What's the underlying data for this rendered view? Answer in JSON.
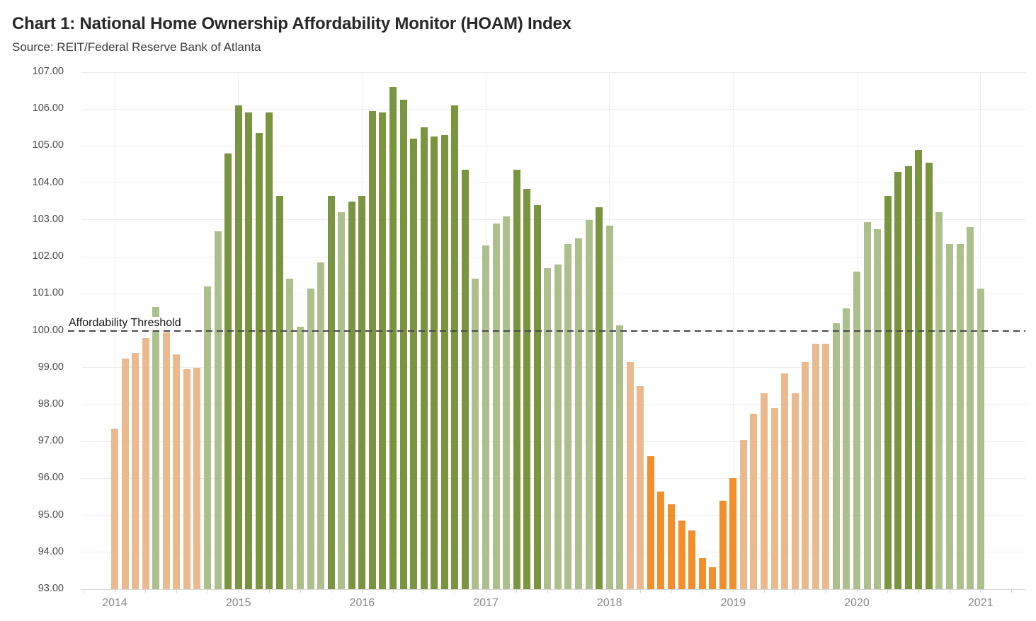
{
  "header": {
    "title": "Chart 1: National Home Ownership Affordability Monitor (HOAM) Index",
    "source": "Source: REIT/Federal Reserve Bank of Atlanta"
  },
  "chart_data": {
    "type": "bar",
    "title": "Chart 1: National Home Ownership Affordability Monitor (HOAM) Index",
    "subtitle": "Source: REIT/Federal Reserve Bank of Atlanta",
    "xlabel": "",
    "ylabel": "",
    "ylim": [
      93,
      107
    ],
    "grid": true,
    "ytick_values": [
      93,
      94,
      95,
      96,
      97,
      98,
      99,
      100,
      101,
      102,
      103,
      104,
      105,
      106,
      107
    ],
    "ytick_labels": [
      "93.00",
      "94.00",
      "95.00",
      "96.00",
      "97.00",
      "98.00",
      "99.00",
      "100.00",
      "101.00",
      "102.00",
      "103.00",
      "104.00",
      "105.00",
      "106.00",
      "107.00"
    ],
    "year_labels": [
      "2014",
      "2015",
      "2016",
      "2017",
      "2018",
      "2019",
      "2020",
      "2021"
    ],
    "threshold": {
      "value": 100,
      "label": "Affordability Threshold"
    },
    "palette": {
      "tan": "#EAB98E",
      "orange": "#F28E2B",
      "light_green": "#ADBF8C",
      "dark_green": "#7A9440"
    },
    "months": [
      "2014-01",
      "2014-02",
      "2014-03",
      "2014-04",
      "2014-05",
      "2014-06",
      "2014-07",
      "2014-08",
      "2014-09",
      "2014-10",
      "2014-11",
      "2014-12",
      "2015-01",
      "2015-02",
      "2015-03",
      "2015-04",
      "2015-05",
      "2015-06",
      "2015-07",
      "2015-08",
      "2015-09",
      "2015-10",
      "2015-11",
      "2015-12",
      "2016-01",
      "2016-02",
      "2016-03",
      "2016-04",
      "2016-05",
      "2016-06",
      "2016-07",
      "2016-08",
      "2016-09",
      "2016-10",
      "2016-11",
      "2016-12",
      "2017-01",
      "2017-02",
      "2017-03",
      "2017-04",
      "2017-05",
      "2017-06",
      "2017-07",
      "2017-08",
      "2017-09",
      "2017-10",
      "2017-11",
      "2017-12",
      "2018-01",
      "2018-02",
      "2018-03",
      "2018-04",
      "2018-05",
      "2018-06",
      "2018-07",
      "2018-08",
      "2018-09",
      "2018-10",
      "2018-11",
      "2018-12",
      "2019-01",
      "2019-02",
      "2019-03",
      "2019-04",
      "2019-05",
      "2019-06",
      "2019-07",
      "2019-08",
      "2019-09",
      "2019-10",
      "2019-11",
      "2019-12",
      "2020-01",
      "2020-02",
      "2020-03",
      "2020-04",
      "2020-05",
      "2020-06",
      "2020-07",
      "2020-08",
      "2020-09",
      "2020-10",
      "2020-11",
      "2020-12",
      "2021-01"
    ],
    "values": [
      97.35,
      99.25,
      99.4,
      99.8,
      100.65,
      99.95,
      99.35,
      98.95,
      99.0,
      101.2,
      102.7,
      104.8,
      106.1,
      105.9,
      105.35,
      105.9,
      103.65,
      101.4,
      100.1,
      101.15,
      101.85,
      103.65,
      103.2,
      103.5,
      103.65,
      105.95,
      105.9,
      106.6,
      106.25,
      105.2,
      105.5,
      105.25,
      105.3,
      106.1,
      104.35,
      101.4,
      102.3,
      102.9,
      103.1,
      104.35,
      103.85,
      103.4,
      101.7,
      101.8,
      102.35,
      102.5,
      103.0,
      103.35,
      102.85,
      100.15,
      99.15,
      98.5,
      96.6,
      95.65,
      95.3,
      94.85,
      94.6,
      93.85,
      93.6,
      95.4,
      96.0,
      97.05,
      97.75,
      98.3,
      97.9,
      98.85,
      98.3,
      99.15,
      99.65,
      99.65,
      100.2,
      100.6,
      101.6,
      102.95,
      102.75,
      103.65,
      104.3,
      104.45,
      104.9,
      104.55,
      103.2,
      102.35,
      102.35,
      102.8,
      101.15
    ],
    "categories": [
      "tan",
      "tan",
      "tan",
      "tan",
      "light_green",
      "tan",
      "tan",
      "tan",
      "tan",
      "light_green",
      "light_green",
      "dark_green",
      "dark_green",
      "dark_green",
      "dark_green",
      "dark_green",
      "dark_green",
      "light_green",
      "light_green",
      "light_green",
      "light_green",
      "dark_green",
      "light_green",
      "dark_green",
      "dark_green",
      "dark_green",
      "dark_green",
      "dark_green",
      "dark_green",
      "dark_green",
      "dark_green",
      "dark_green",
      "dark_green",
      "dark_green",
      "dark_green",
      "light_green",
      "light_green",
      "light_green",
      "light_green",
      "dark_green",
      "dark_green",
      "dark_green",
      "light_green",
      "light_green",
      "light_green",
      "light_green",
      "light_green",
      "dark_green",
      "light_green",
      "light_green",
      "tan",
      "tan",
      "orange",
      "orange",
      "orange",
      "orange",
      "orange",
      "orange",
      "orange",
      "orange",
      "orange",
      "tan",
      "tan",
      "tan",
      "tan",
      "tan",
      "tan",
      "tan",
      "tan",
      "tan",
      "light_green",
      "light_green",
      "light_green",
      "light_green",
      "light_green",
      "dark_green",
      "dark_green",
      "dark_green",
      "dark_green",
      "dark_green",
      "light_green",
      "light_green",
      "light_green",
      "light_green",
      "light_green"
    ]
  }
}
